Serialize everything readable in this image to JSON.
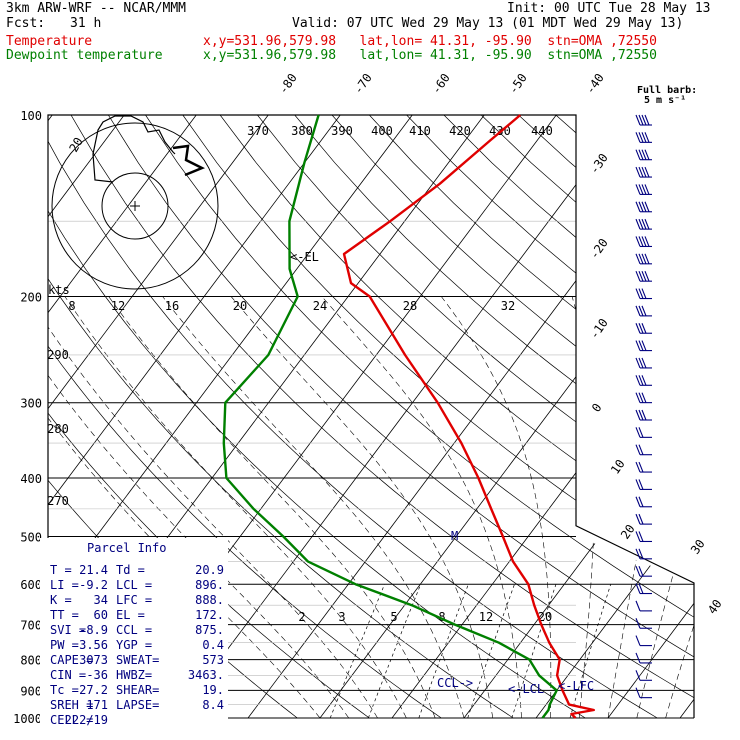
{
  "header": {
    "model": "3km ARW-WRF -- NCAR/MMM",
    "init": "Init: 00 UTC Tue 28 May 13",
    "fcst_label": "Fcst:",
    "fcst_value": "31 h",
    "valid": "Valid: 07 UTC Wed 29 May 13 (01 MDT Wed 29 May 13)",
    "temp_label": "Temperature",
    "temp_loc": "x,y=531.96,579.98   lat,lon= 41.31, -95.90  stn=OMA ,72550",
    "dew_label": "Dewpoint temperature",
    "dew_loc": "x,y=531.96,579.98   lat,lon= 41.31, -95.90  stn=OMA ,72550",
    "barb_note_1": "Full barb:",
    "barb_note_2": "5 m s⁻¹"
  },
  "colors": {
    "temperature": "#e00000",
    "dewpoint": "#008000",
    "stats": "#000080"
  },
  "chart_data": {
    "type": "line",
    "title": "",
    "pressure_levels": [
      "100",
      "200",
      "300",
      "400",
      "500",
      "600",
      "700",
      "800",
      "900",
      "1000"
    ],
    "isotherm_labels": [
      "-80",
      "-70",
      "-60",
      "-50",
      "-40",
      "-30",
      "-20",
      "-10",
      "0",
      "10",
      "20",
      "30",
      "40"
    ],
    "theta_labels": [
      "370",
      "380",
      "390",
      "400",
      "410",
      "420",
      "430",
      "440"
    ],
    "low_theta_labels": [
      "290",
      "280",
      "270"
    ],
    "mixing_ratio_labels": [
      "2",
      "3",
      "5",
      "8",
      "12",
      "20"
    ],
    "hodograph": {
      "units": "kts",
      "ring_labels": [
        "8",
        "12",
        "16",
        "20",
        "24",
        "28",
        "32"
      ],
      "radius_note": "20",
      "path": [
        [
          0,
          0
        ],
        [
          -18,
          -2
        ],
        [
          -20,
          -28
        ],
        [
          -15,
          -52
        ],
        [
          -10,
          -60
        ],
        [
          2,
          -66
        ],
        [
          18,
          -66
        ],
        [
          30,
          -60
        ],
        [
          35,
          -50
        ],
        [
          46,
          -52
        ],
        [
          52,
          -40
        ],
        [
          60,
          -30
        ],
        [
          62,
          -28
        ]
      ]
    },
    "series": [
      {
        "name": "Temperature",
        "points": [
          [
            1000,
            25.5
          ],
          [
            985,
            24.5
          ],
          [
            970,
            27.2
          ],
          [
            950,
            23.2
          ],
          [
            900,
            20.8
          ],
          [
            850,
            18.5
          ],
          [
            800,
            17.2
          ],
          [
            750,
            14.0
          ],
          [
            700,
            11.0
          ],
          [
            650,
            8.0
          ],
          [
            600,
            5.0
          ],
          [
            550,
            0.5
          ],
          [
            500,
            -3.5
          ],
          [
            450,
            -8.0
          ],
          [
            400,
            -13.0
          ],
          [
            350,
            -19.0
          ],
          [
            300,
            -26.5
          ],
          [
            250,
            -36.0
          ],
          [
            200,
            -47.0
          ],
          [
            190,
            -51.0
          ],
          [
            170,
            -55.0
          ],
          [
            150,
            -52.0
          ],
          [
            130,
            -49.0
          ],
          [
            110,
            -46.5
          ],
          [
            100,
            -45.0
          ]
        ]
      },
      {
        "name": "Dewpoint temperature",
        "points": [
          [
            1000,
            20.9
          ],
          [
            970,
            20.9
          ],
          [
            950,
            20.5
          ],
          [
            900,
            20.0
          ],
          [
            850,
            16.0
          ],
          [
            800,
            13.0
          ],
          [
            750,
            7.0
          ],
          [
            700,
            -1.0
          ],
          [
            650,
            -9.0
          ],
          [
            600,
            -19.0
          ],
          [
            550,
            -28.0
          ],
          [
            500,
            -34.0
          ],
          [
            450,
            -41.0
          ],
          [
            400,
            -48.0
          ],
          [
            350,
            -52.0
          ],
          [
            300,
            -56.0
          ],
          [
            250,
            -55.0
          ],
          [
            200,
            -57.0
          ],
          [
            180,
            -61.0
          ],
          [
            150,
            -66.0
          ],
          [
            120,
            -70.0
          ],
          [
            100,
            -73.0
          ]
        ]
      }
    ],
    "level_markers": [
      {
        "label": "<-EL",
        "pressure": 172
      },
      {
        "label": "CCL->",
        "pressure": 875
      },
      {
        "label": "<-LCL",
        "pressure": 896
      },
      {
        "label": "<-LFC",
        "pressure": 888
      },
      {
        "label": "M",
        "pressure": 500
      }
    ],
    "parcel_info": {
      "title": "Parcel Info",
      "rows": [
        [
          "T   =",
          "21.4",
          "Td  =",
          "20.9"
        ],
        [
          "LI  =",
          "-9.2",
          "LCL =",
          "896."
        ],
        [
          "K   =",
          "34",
          "LFC =",
          "888."
        ],
        [
          "TT  =",
          "60",
          "EL  =",
          "172."
        ],
        [
          "SVI =",
          "-8.9",
          "CCL =",
          "875."
        ],
        [
          "PW  =",
          "3.56",
          "YGP =",
          "0.4"
        ],
        [
          "CAPE =",
          "3073",
          "SWEAT=",
          "573"
        ],
        [
          "CIN  =",
          "-36",
          "HWBZ=",
          "3463."
        ],
        [
          "Tc  =",
          "27.2",
          "SHEAR=",
          "19."
        ],
        [
          "SREH =",
          "171",
          "LAPSE=",
          "8.4"
        ],
        [
          "CELL =",
          "222/19",
          "",
          ""
        ]
      ]
    },
    "wind_barbs_kts": [
      45,
      45,
      45,
      45,
      40,
      40,
      40,
      35,
      35,
      35,
      30,
      30,
      30,
      30,
      25,
      25,
      25,
      25,
      20,
      20,
      20,
      20,
      20,
      15,
      15,
      15,
      15,
      15,
      10,
      10,
      10,
      10,
      10,
      10
    ]
  }
}
